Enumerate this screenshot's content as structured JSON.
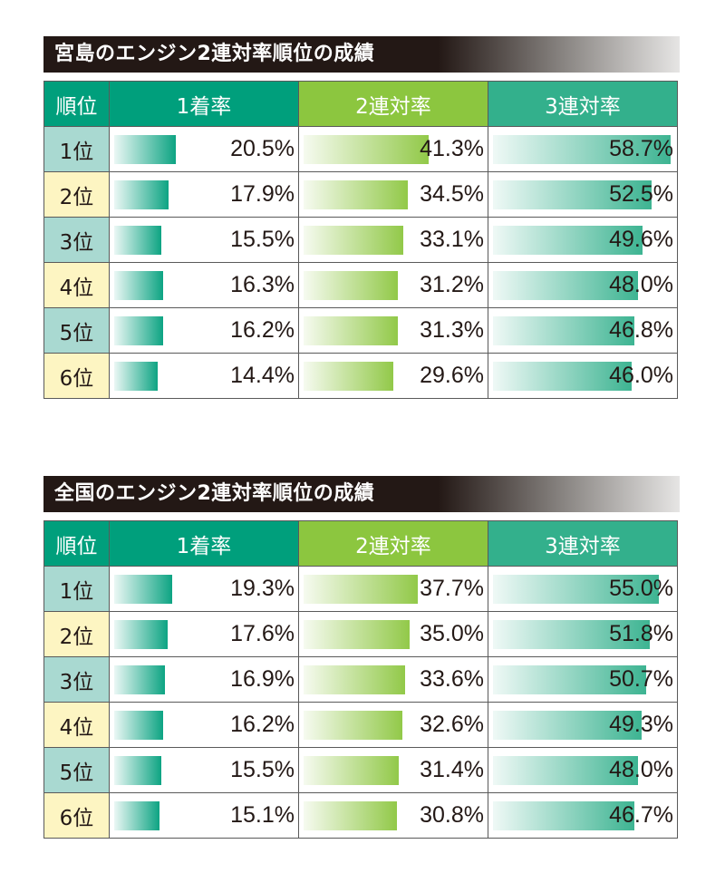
{
  "headers": {
    "rank": "順位",
    "win": "1着率",
    "two": "2連対率",
    "three": "3連対率"
  },
  "colors": {
    "win": "#009f7c",
    "two": "#8cc63f",
    "three": "#33b08c",
    "rank_odd": "#a9d9d1",
    "rank_even": "#fdf5c2",
    "title_bg": "#231815"
  },
  "chart_data": [
    {
      "type": "table",
      "title": "宮島のエンジン2連対率順位の成績",
      "rows": [
        {
          "rank": "1位",
          "win": 20.5,
          "two": 41.3,
          "three": 58.7,
          "win_label": "20.5%",
          "two_label": "41.3%",
          "three_label": "58.7%"
        },
        {
          "rank": "2位",
          "win": 17.9,
          "two": 34.5,
          "three": 52.5,
          "win_label": "17.9%",
          "two_label": "34.5%",
          "three_label": "52.5%"
        },
        {
          "rank": "3位",
          "win": 15.5,
          "two": 33.1,
          "three": 49.6,
          "win_label": "15.5%",
          "two_label": "33.1%",
          "three_label": "49.6%"
        },
        {
          "rank": "4位",
          "win": 16.3,
          "two": 31.2,
          "three": 48.0,
          "win_label": "16.3%",
          "two_label": "31.2%",
          "three_label": "48.0%"
        },
        {
          "rank": "5位",
          "win": 16.2,
          "two": 31.3,
          "three": 46.8,
          "win_label": "16.2%",
          "two_label": "31.3%",
          "three_label": "46.8%"
        },
        {
          "rank": "6位",
          "win": 14.4,
          "two": 29.6,
          "three": 46.0,
          "win_label": "14.4%",
          "two_label": "29.6%",
          "three_label": "46.0%"
        }
      ]
    },
    {
      "type": "table",
      "title": "全国のエンジン2連対率順位の成績",
      "rows": [
        {
          "rank": "1位",
          "win": 19.3,
          "two": 37.7,
          "three": 55.0,
          "win_label": "19.3%",
          "two_label": "37.7%",
          "three_label": "55.0%"
        },
        {
          "rank": "2位",
          "win": 17.6,
          "two": 35.0,
          "three": 51.8,
          "win_label": "17.6%",
          "two_label": "35.0%",
          "three_label": "51.8%"
        },
        {
          "rank": "3位",
          "win": 16.9,
          "two": 33.6,
          "three": 50.7,
          "win_label": "16.9%",
          "two_label": "33.6%",
          "three_label": "50.7%"
        },
        {
          "rank": "4位",
          "win": 16.2,
          "two": 32.6,
          "three": 49.3,
          "win_label": "16.2%",
          "two_label": "32.6%",
          "three_label": "49.3%"
        },
        {
          "rank": "5位",
          "win": 15.5,
          "two": 31.4,
          "three": 48.0,
          "win_label": "15.5%",
          "two_label": "31.4%",
          "three_label": "48.0%"
        },
        {
          "rank": "6位",
          "win": 15.1,
          "two": 30.8,
          "three": 46.7,
          "win_label": "15.1%",
          "two_label": "30.8%",
          "three_label": "46.7%"
        }
      ]
    }
  ]
}
